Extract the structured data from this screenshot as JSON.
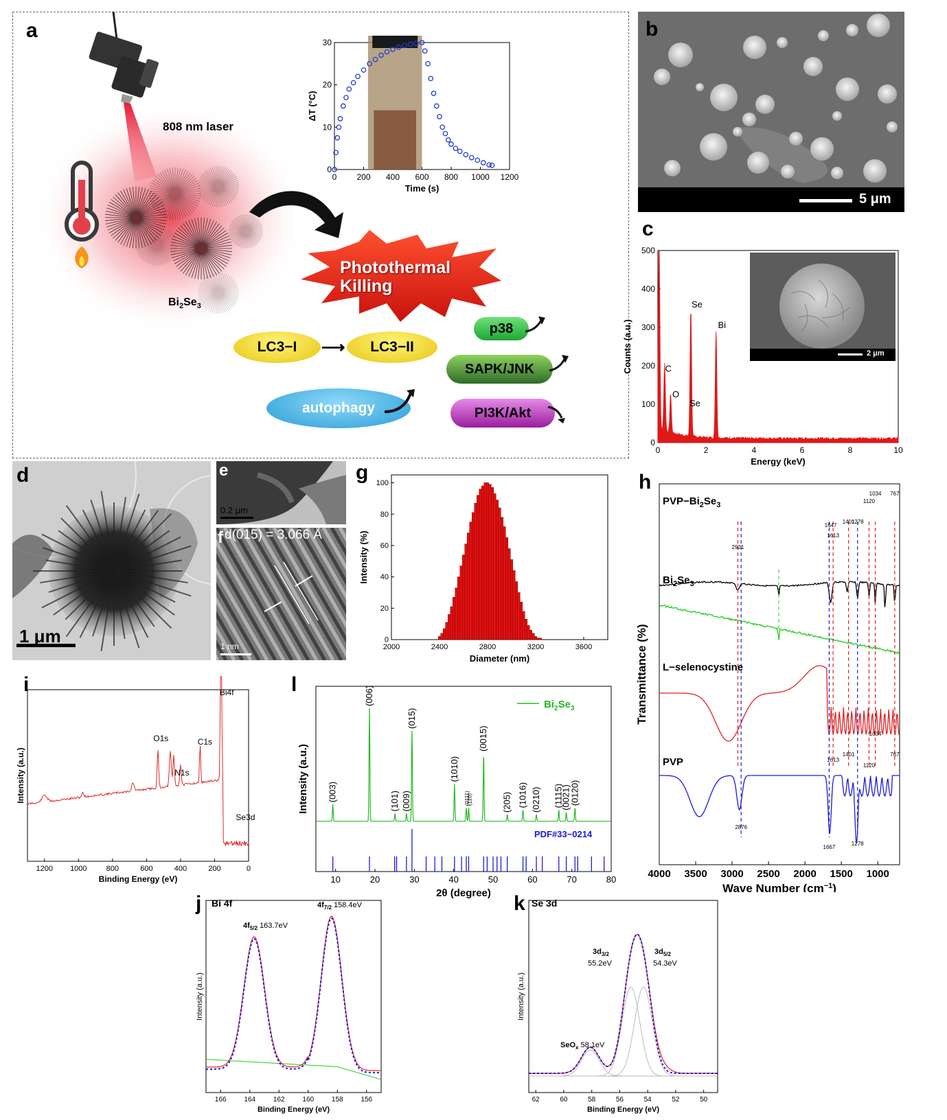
{
  "panels": {
    "a": {
      "letter": "a",
      "laser_label": "808 nm laser",
      "material_label": "Bi",
      "material_sub1": "2",
      "material_mid": "Se",
      "material_sub2": "3",
      "killing_line1": "Photothermal",
      "killing_line2": "Killing",
      "lc3_i": "LC3−I",
      "lc3_ii": "LC3−II",
      "autophagy": "autophagy",
      "p38": "p38",
      "sapk": "SAPK/JNK",
      "pi3k": "PI3K/Akt",
      "colors": {
        "lc3": "#f2dc1e",
        "autophagy": "#39aee3",
        "p38": "#2fbf4a",
        "sapk": "#4a8f3a",
        "pi3k": "#c03ac3",
        "burst": "#e42a1e"
      }
    },
    "b": {
      "letter": "b",
      "scale": "5 μm"
    },
    "c": {
      "letter": "c",
      "inset_scale": "2 μm"
    },
    "d": {
      "letter": "d",
      "scale": "1 μm"
    },
    "e": {
      "letter": "e",
      "scale": "0.2 μm"
    },
    "f": {
      "letter": "f",
      "label": "d(015) = 3.066 Å",
      "scale": "1 nm"
    },
    "g": {
      "letter": "g"
    },
    "h": {
      "letter": "h"
    },
    "i": {
      "letter": "i"
    },
    "l": {
      "letter": "l"
    },
    "j": {
      "letter": "j"
    },
    "k": {
      "letter": "k"
    }
  },
  "chart_data": [
    {
      "id": "a-inset",
      "type": "scatter",
      "xlabel": "Time (s)",
      "ylabel": "ΔT (°C)",
      "xlim": [
        0,
        1200
      ],
      "ylim": [
        0,
        30
      ],
      "xticks": [
        0,
        200,
        400,
        600,
        800,
        1000,
        1200
      ],
      "yticks": [
        0,
        10,
        20,
        30
      ],
      "x": [
        0,
        10,
        20,
        30,
        40,
        60,
        80,
        100,
        130,
        160,
        200,
        240,
        280,
        320,
        360,
        400,
        440,
        480,
        520,
        560,
        600,
        620,
        640,
        660,
        680,
        700,
        720,
        740,
        760,
        780,
        800,
        830,
        860,
        900,
        940,
        980,
        1020,
        1060,
        1080
      ],
      "y": [
        0,
        4,
        7.5,
        10,
        12,
        15,
        17,
        19,
        20.5,
        22,
        23.5,
        25,
        26,
        27,
        27.8,
        28.4,
        28.9,
        29.3,
        29.6,
        29.8,
        30,
        28,
        25,
        21.5,
        18,
        15,
        12.5,
        10,
        8.5,
        7,
        6,
        5,
        4.3,
        3.5,
        2.8,
        2.2,
        1.6,
        1.1,
        1
      ]
    },
    {
      "id": "c",
      "type": "line",
      "xlabel": "Energy (keV)",
      "ylabel": "Counts (a.u.)",
      "xlim": [
        0,
        10
      ],
      "ylim": [
        0,
        500
      ],
      "xticks": [
        0,
        2,
        4,
        6,
        8,
        10
      ],
      "yticks": [
        0,
        100,
        200,
        300,
        400,
        500
      ],
      "peaks": [
        {
          "x": 0.05,
          "y": 500,
          "label": ""
        },
        {
          "x": 0.28,
          "y": 175,
          "label": "C"
        },
        {
          "x": 0.53,
          "y": 100,
          "label": "O"
        },
        {
          "x": 1.37,
          "y": 335,
          "label": "Se"
        },
        {
          "x": 2.42,
          "y": 280,
          "label": "Bi"
        }
      ],
      "annotations": [
        "C",
        "O",
        "Se",
        "Se",
        "Bi"
      ]
    },
    {
      "id": "g",
      "type": "bar",
      "xlabel": "Diameter (nm)",
      "ylabel": "Intensity (%)",
      "xlim": [
        2000,
        3800
      ],
      "ylim": [
        0,
        105
      ],
      "xticks": [
        2000,
        2400,
        2800,
        3200,
        3600
      ],
      "yticks": [
        0,
        20,
        40,
        60,
        80,
        100
      ],
      "categories": [
        2400,
        2420,
        2440,
        2460,
        2480,
        2500,
        2520,
        2540,
        2560,
        2580,
        2600,
        2620,
        2640,
        2660,
        2680,
        2700,
        2720,
        2740,
        2760,
        2780,
        2800,
        2820,
        2840,
        2860,
        2880,
        2900,
        2920,
        2940,
        2960,
        2980,
        3000,
        3020,
        3040,
        3060,
        3080,
        3100,
        3120,
        3140,
        3160,
        3180,
        3200,
        3220,
        3240
      ],
      "values": [
        2,
        4,
        7,
        11,
        16,
        21,
        27,
        33,
        40,
        47,
        54,
        61,
        68,
        75,
        81,
        87,
        92,
        96,
        98,
        100,
        100,
        99,
        97,
        93,
        89,
        84,
        78,
        72,
        65,
        58,
        51,
        44,
        37,
        30,
        24,
        18,
        13,
        9,
        6,
        4,
        2,
        1,
        1
      ]
    },
    {
      "id": "h",
      "type": "line",
      "xlabel": "Wave Number (cm⁻¹)",
      "ylabel": "Transmittance (%)",
      "xlim": [
        4000,
        700
      ],
      "xticks": [
        4000,
        3500,
        3000,
        2500,
        2000,
        1500,
        1000
      ],
      "series": [
        {
          "name": "PVP−Bi₂Se₃",
          "color": "#000000"
        },
        {
          "name": "Bi₂Se₃",
          "color": "#22cc22"
        },
        {
          "name": "L−selenocystine",
          "color": "#e02020"
        },
        {
          "name": "PVP",
          "color": "#1a1adc"
        }
      ],
      "annotations": [
        "2921",
        "1647",
        "1613",
        "1401",
        "1278",
        "1120",
        "1034",
        "767",
        "1613",
        "1401",
        "1034",
        "1120",
        "767",
        "2876",
        "1667",
        "1278"
      ]
    },
    {
      "id": "i",
      "type": "line",
      "xlabel": "Binding Energy (eV)",
      "ylabel": "Intensity (a.u.)",
      "xlim": [
        1300,
        0
      ],
      "xticks": [
        1200,
        1000,
        800,
        600,
        400,
        200,
        0
      ],
      "annotations": [
        "Bi4f",
        "O1s",
        "N1s",
        "C1s",
        "Se3d"
      ]
    },
    {
      "id": "l",
      "type": "line",
      "xlabel": "2θ (degree)",
      "ylabel": "Intensity (a.u.)",
      "xlim": [
        5,
        80
      ],
      "xticks": [
        10,
        20,
        30,
        40,
        50,
        60,
        70,
        80
      ],
      "series": [
        {
          "name": "Bi₂Se₃",
          "color": "#22bb22"
        },
        {
          "name": "PDF#33−0214",
          "color": "#1a1adc"
        }
      ],
      "peaks": [
        {
          "x": 9.3,
          "label": "(003)"
        },
        {
          "x": 18.6,
          "label": "(006)"
        },
        {
          "x": 25.1,
          "label": "(101)"
        },
        {
          "x": 28.0,
          "label": "(009)"
        },
        {
          "x": 29.4,
          "label": "(015)"
        },
        {
          "x": 40.2,
          "label": "(1010)"
        },
        {
          "x": 43.2,
          "label": "(0111)"
        },
        {
          "x": 43.8,
          "label": "(110)"
        },
        {
          "x": 47.6,
          "label": "(0015)"
        },
        {
          "x": 53.6,
          "label": "(205)"
        },
        {
          "x": 57.6,
          "label": "(1016)"
        },
        {
          "x": 61.0,
          "label": "(0210)"
        },
        {
          "x": 66.7,
          "label": "(1115)"
        },
        {
          "x": 68.6,
          "label": "(0021)"
        },
        {
          "x": 70.8,
          "label": "(0120)"
        }
      ]
    },
    {
      "id": "j",
      "type": "line",
      "title": "Bi 4f",
      "xlabel": "Binding Energy (eV)",
      "ylabel": "Intensity (a.u.)",
      "xlim": [
        167,
        155
      ],
      "xticks": [
        166,
        164,
        162,
        160,
        158,
        156
      ],
      "annotations": [
        "4f5/2 163.7eV",
        "4f7/2 158.4eV"
      ]
    },
    {
      "id": "k",
      "type": "line",
      "title": "Se 3d",
      "xlabel": "Binding Energy (eV)",
      "ylabel": "Intensity (a.u.)",
      "xlim": [
        62.5,
        49
      ],
      "xticks": [
        62,
        60,
        58,
        56,
        54,
        52,
        50
      ],
      "annotations": [
        "SeOx 58.1eV",
        "3d3/2 55.2eV",
        "3d5/2 54.3eV"
      ]
    }
  ],
  "text": {
    "a_inset": {
      "xlabel": "Time (s)",
      "ylabel": "ΔT (°C)"
    },
    "c": {
      "xlabel": "Energy (keV)",
      "ylabel": "Counts (a.u.)"
    },
    "g": {
      "xlabel": "Diameter (nm)",
      "ylabel": "Intensity (%)"
    },
    "h": {
      "xlabel": "Wave Number (cm",
      "xlabel_sup": "−1",
      "xlabel_end": ")",
      "ylabel": "Transmittance (%)",
      "s1": "PVP−Bi",
      "s2": "Bi",
      "s3": "L−selenocystine",
      "s4": "PVP"
    },
    "i": {
      "xlabel": "Binding Energy (eV)",
      "ylabel": "Intensity (a.u.)"
    },
    "l": {
      "xlabel": "2θ (degree)",
      "ylabel": "Intensity (a.u.)",
      "legend": "Bi",
      "pdf": "PDF#33−0214"
    },
    "j": {
      "title": "Bi 4f",
      "xlabel": "Binding Energy (eV)",
      "ylabel": "Intensity (a.u.)",
      "p1_val": " 163.7eV",
      "p2_val": " 158.4eV"
    },
    "k": {
      "title": "Se 3d",
      "xlabel": "Binding Energy (eV)",
      "ylabel": "Intensity (a.u.)",
      "seox_val": " 58.1eV",
      "d32_val": "55.2eV",
      "d52_val": "54.3eV"
    }
  }
}
